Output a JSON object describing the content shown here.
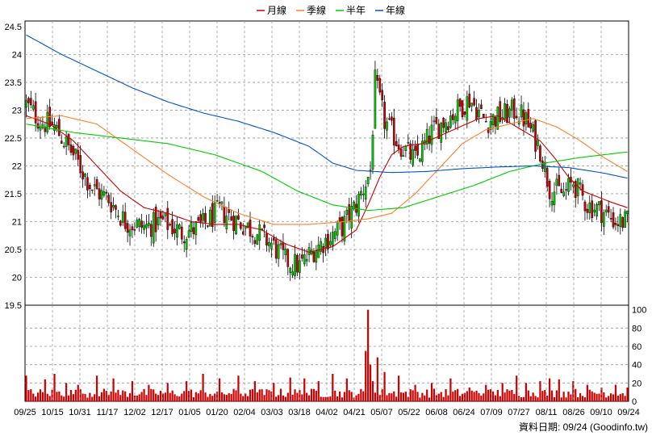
{
  "legend": [
    {
      "label": "月線",
      "color": "#cc0000"
    },
    {
      "label": "季線",
      "color": "#ff7f27"
    },
    {
      "label": "半年",
      "color": "#00cc00"
    },
    {
      "label": "年線",
      "color": "#0055cc"
    }
  ],
  "footer": "資料日期: 09/24 (Goodinfo.tw)",
  "chart_data": [
    {
      "type": "candlestick",
      "ylim": [
        19.5,
        24.6
      ],
      "yticks": [
        "24.5",
        "24",
        "23.5",
        "23",
        "22.5",
        "22",
        "21.5",
        "21",
        "20.5",
        "20",
        "19.5"
      ],
      "xticks": [
        "09/25",
        "10/15",
        "10/31",
        "11/17",
        "12/02",
        "12/17",
        "01/05",
        "01/20",
        "02/04",
        "03/03",
        "03/18",
        "04/02",
        "04/21",
        "05/07",
        "05/22",
        "06/08",
        "06/24",
        "07/09",
        "07/27",
        "08/11",
        "08/26",
        "09/10",
        "09/24"
      ],
      "grid": true,
      "up_color": "#00cc00",
      "down_color": "#cc0000",
      "close_anchors": [
        [
          0,
          23.1
        ],
        [
          6,
          22.8
        ],
        [
          12,
          22.7
        ],
        [
          20,
          22.2
        ],
        [
          28,
          21.6
        ],
        [
          35,
          21.4
        ],
        [
          42,
          21.0
        ],
        [
          50,
          20.9
        ],
        [
          58,
          21.0
        ],
        [
          66,
          20.8
        ],
        [
          74,
          20.9
        ],
        [
          82,
          21.2
        ],
        [
          90,
          21.0
        ],
        [
          98,
          20.8
        ],
        [
          104,
          20.6
        ],
        [
          110,
          20.3
        ],
        [
          116,
          20.2
        ],
        [
          122,
          20.5
        ],
        [
          128,
          20.7
        ],
        [
          134,
          20.9
        ],
        [
          140,
          21.3
        ],
        [
          146,
          21.9
        ],
        [
          148,
          23.5
        ],
        [
          152,
          22.8
        ],
        [
          158,
          22.4
        ],
        [
          165,
          22.1
        ],
        [
          172,
          22.6
        ],
        [
          180,
          22.9
        ],
        [
          188,
          23.2
        ],
        [
          195,
          22.8
        ],
        [
          202,
          22.9
        ],
        [
          208,
          23.0
        ],
        [
          212,
          22.8
        ],
        [
          218,
          22.3
        ],
        [
          222,
          21.6
        ],
        [
          228,
          21.5
        ],
        [
          232,
          21.7
        ],
        [
          238,
          21.3
        ],
        [
          244,
          21.2
        ],
        [
          250,
          21.0
        ],
        [
          255,
          21.0
        ]
      ],
      "series": [
        {
          "name": "月線",
          "points": [
            [
              0,
              22.9
            ],
            [
              10,
              22.75
            ],
            [
              20,
              22.45
            ],
            [
              30,
              22.0
            ],
            [
              40,
              21.55
            ],
            [
              50,
              21.25
            ],
            [
              60,
              21.15
            ],
            [
              70,
              21.0
            ],
            [
              80,
              20.95
            ],
            [
              90,
              20.95
            ],
            [
              100,
              20.85
            ],
            [
              110,
              20.6
            ],
            [
              120,
              20.45
            ],
            [
              130,
              20.55
            ],
            [
              140,
              20.85
            ],
            [
              145,
              21.3
            ],
            [
              150,
              21.8
            ],
            [
              155,
              22.2
            ],
            [
              160,
              22.35
            ],
            [
              168,
              22.4
            ],
            [
              176,
              22.55
            ],
            [
              184,
              22.7
            ],
            [
              192,
              22.85
            ],
            [
              200,
              22.9
            ],
            [
              206,
              22.75
            ],
            [
              212,
              22.6
            ],
            [
              218,
              22.45
            ],
            [
              224,
              22.15
            ],
            [
              230,
              21.8
            ],
            [
              236,
              21.55
            ],
            [
              242,
              21.45
            ],
            [
              248,
              21.35
            ],
            [
              255,
              21.25
            ]
          ]
        },
        {
          "name": "季線",
          "points": [
            [
              0,
              22.85
            ],
            [
              15,
              22.9
            ],
            [
              30,
              22.75
            ],
            [
              45,
              22.3
            ],
            [
              60,
              21.85
            ],
            [
              75,
              21.45
            ],
            [
              90,
              21.15
            ],
            [
              105,
              20.95
            ],
            [
              120,
              20.95
            ],
            [
              135,
              21.0
            ],
            [
              145,
              21.05
            ],
            [
              155,
              21.15
            ],
            [
              165,
              21.5
            ],
            [
              175,
              21.95
            ],
            [
              185,
              22.4
            ],
            [
              195,
              22.65
            ],
            [
              205,
              22.75
            ],
            [
              215,
              22.85
            ],
            [
              225,
              22.7
            ],
            [
              235,
              22.45
            ],
            [
              245,
              22.15
            ],
            [
              255,
              21.9
            ]
          ]
        },
        {
          "name": "半年",
          "points": [
            [
              0,
              22.75
            ],
            [
              20,
              22.6
            ],
            [
              40,
              22.5
            ],
            [
              60,
              22.4
            ],
            [
              80,
              22.2
            ],
            [
              100,
              21.9
            ],
            [
              115,
              21.55
            ],
            [
              130,
              21.3
            ],
            [
              145,
              21.2
            ],
            [
              160,
              21.25
            ],
            [
              175,
              21.45
            ],
            [
              190,
              21.65
            ],
            [
              205,
              21.9
            ],
            [
              220,
              22.05
            ],
            [
              235,
              22.15
            ],
            [
              245,
              22.2
            ],
            [
              255,
              22.25
            ]
          ]
        },
        {
          "name": "年線",
          "points": [
            [
              0,
              24.35
            ],
            [
              15,
              24.0
            ],
            [
              30,
              23.7
            ],
            [
              45,
              23.4
            ],
            [
              60,
              23.15
            ],
            [
              75,
              22.95
            ],
            [
              90,
              22.8
            ],
            [
              105,
              22.6
            ],
            [
              120,
              22.35
            ],
            [
              130,
              22.05
            ],
            [
              140,
              21.92
            ],
            [
              155,
              21.88
            ],
            [
              170,
              21.9
            ],
            [
              185,
              21.95
            ],
            [
              200,
              21.98
            ],
            [
              215,
              22.0
            ],
            [
              230,
              21.97
            ],
            [
              245,
              21.87
            ],
            [
              255,
              21.78
            ]
          ]
        }
      ]
    },
    {
      "type": "bar",
      "ylim": [
        0,
        105
      ],
      "yticks": [
        "100",
        "80",
        "60",
        "40",
        "20",
        "0"
      ],
      "spikes": [
        [
          0,
          28
        ],
        [
          8,
          24
        ],
        [
          12,
          30
        ],
        [
          17,
          20
        ],
        [
          22,
          18
        ],
        [
          30,
          28
        ],
        [
          37,
          25
        ],
        [
          45,
          22
        ],
        [
          52,
          18
        ],
        [
          60,
          20
        ],
        [
          68,
          22
        ],
        [
          75,
          30
        ],
        [
          82,
          25
        ],
        [
          90,
          28
        ],
        [
          97,
          22
        ],
        [
          105,
          20
        ],
        [
          112,
          26
        ],
        [
          118,
          25
        ],
        [
          124,
          22
        ],
        [
          130,
          30
        ],
        [
          136,
          25
        ],
        [
          144,
          55
        ],
        [
          145,
          100
        ],
        [
          146,
          40
        ],
        [
          147,
          22
        ],
        [
          149,
          48
        ],
        [
          152,
          32
        ],
        [
          158,
          28
        ],
        [
          165,
          18
        ],
        [
          172,
          20
        ],
        [
          180,
          25
        ],
        [
          188,
          15
        ],
        [
          195,
          18
        ],
        [
          202,
          20
        ],
        [
          208,
          28
        ],
        [
          212,
          20
        ],
        [
          218,
          22
        ],
        [
          222,
          25
        ],
        [
          226,
          24
        ],
        [
          232,
          22
        ],
        [
          238,
          18
        ],
        [
          244,
          15
        ],
        [
          250,
          18
        ],
        [
          255,
          15
        ]
      ]
    }
  ]
}
